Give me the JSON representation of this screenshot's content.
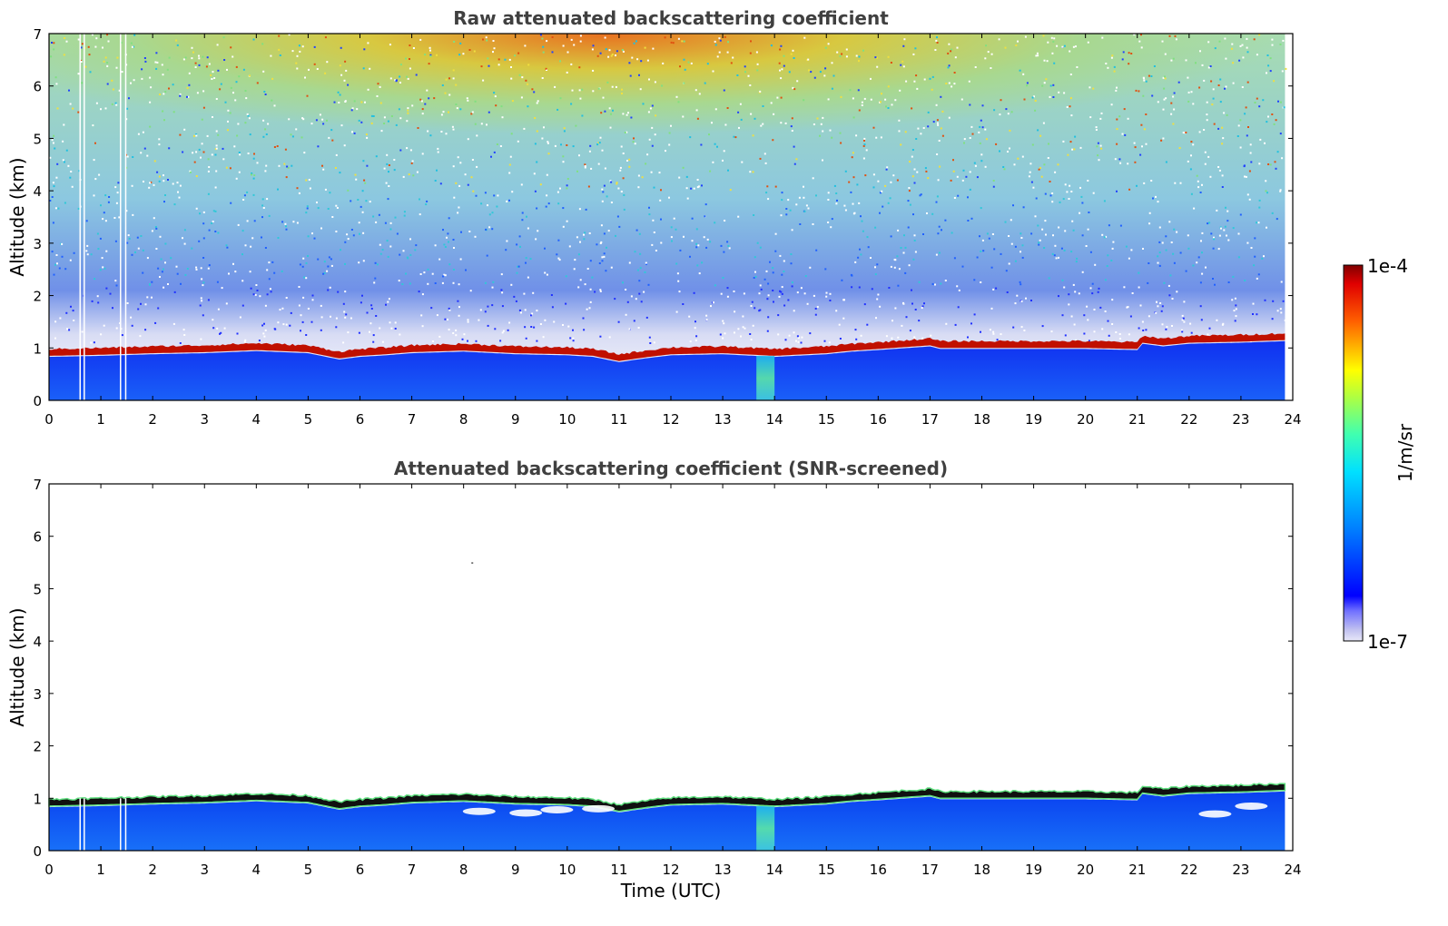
{
  "chart_data": [
    {
      "type": "heatmap",
      "title": "Raw attenuated backscattering coefficient",
      "xlabel": "",
      "ylabel": "Altitude (km)",
      "xlim": [
        0,
        24
      ],
      "ylim": [
        0,
        7
      ],
      "x_ticks": [
        "0",
        "1",
        "2",
        "3",
        "4",
        "5",
        "6",
        "7",
        "8",
        "9",
        "10",
        "11",
        "12",
        "13",
        "14",
        "15",
        "16",
        "17",
        "18",
        "19",
        "20",
        "21",
        "22",
        "23",
        "24"
      ],
      "y_ticks": [
        "0",
        "1",
        "2",
        "3",
        "4",
        "5",
        "6",
        "7"
      ],
      "data_end_x": 23.85,
      "cloud_base_km": [
        [
          0,
          0.85
        ],
        [
          1,
          0.87
        ],
        [
          2,
          0.9
        ],
        [
          3,
          0.92
        ],
        [
          4,
          0.96
        ],
        [
          5,
          0.92
        ],
        [
          5.6,
          0.8
        ],
        [
          6,
          0.85
        ],
        [
          6.5,
          0.88
        ],
        [
          7,
          0.92
        ],
        [
          8,
          0.95
        ],
        [
          9,
          0.9
        ],
        [
          10,
          0.88
        ],
        [
          10.5,
          0.85
        ],
        [
          11,
          0.75
        ],
        [
          11.5,
          0.82
        ],
        [
          12,
          0.88
        ],
        [
          13,
          0.9
        ],
        [
          14,
          0.85
        ],
        [
          15,
          0.9
        ],
        [
          15.5,
          0.95
        ],
        [
          16,
          0.98
        ],
        [
          17,
          1.05
        ],
        [
          17.2,
          1.0
        ],
        [
          18,
          1.0
        ],
        [
          19,
          1.0
        ],
        [
          20,
          1.0
        ],
        [
          21,
          0.98
        ],
        [
          21.1,
          1.1
        ],
        [
          21.5,
          1.05
        ],
        [
          22,
          1.1
        ],
        [
          23,
          1.12
        ],
        [
          23.85,
          1.15
        ]
      ],
      "gaps_x": [
        0.6,
        0.68,
        1.38,
        1.48
      ],
      "colorbar": {
        "max_label": "1e-4",
        "min_label": "1e-7",
        "label": "1/m/sr",
        "scale": "log"
      }
    },
    {
      "type": "heatmap",
      "title": "Attenuated backscattering coefficient (SNR-screened)",
      "xlabel": "Time (UTC)",
      "ylabel": "Altitude (km)",
      "xlim": [
        0,
        24
      ],
      "ylim": [
        0,
        7
      ],
      "x_ticks": [
        "0",
        "1",
        "2",
        "3",
        "4",
        "5",
        "6",
        "7",
        "8",
        "9",
        "10",
        "11",
        "12",
        "13",
        "14",
        "15",
        "16",
        "17",
        "18",
        "19",
        "20",
        "21",
        "22",
        "23",
        "24"
      ],
      "y_ticks": [
        "0",
        "1",
        "2",
        "3",
        "4",
        "5",
        "6",
        "7"
      ],
      "data_end_x": 23.85
    }
  ]
}
